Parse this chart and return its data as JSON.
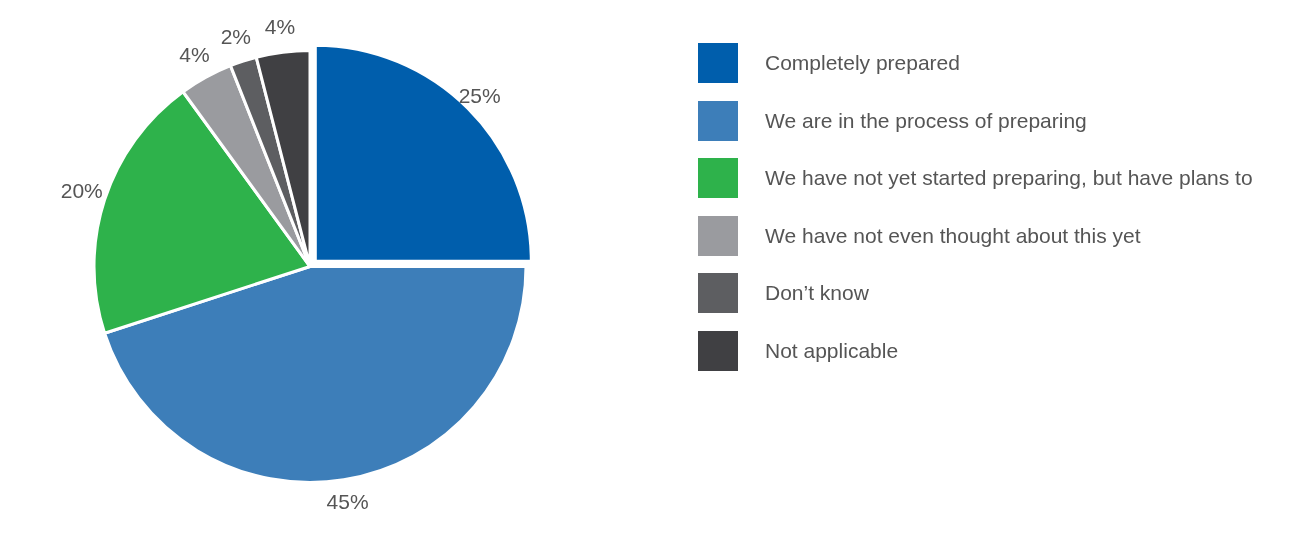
{
  "chart_data": {
    "type": "pie",
    "categories": [
      "Completely prepared",
      "We are in the process of preparing",
      "We have not yet started preparing, but have plans to",
      "We have not even thought about this yet",
      "Don’t know",
      "Not applicable"
    ],
    "values": [
      25,
      45,
      20,
      4,
      2,
      4
    ],
    "colors": [
      "#005eac",
      "#3d7eb9",
      "#2eb24b",
      "#9a9b9f",
      "#5d5e61",
      "#404043"
    ],
    "value_labels": [
      "25%",
      "45%",
      "20%",
      "4%",
      "2%",
      "4%"
    ],
    "legend": "right"
  }
}
